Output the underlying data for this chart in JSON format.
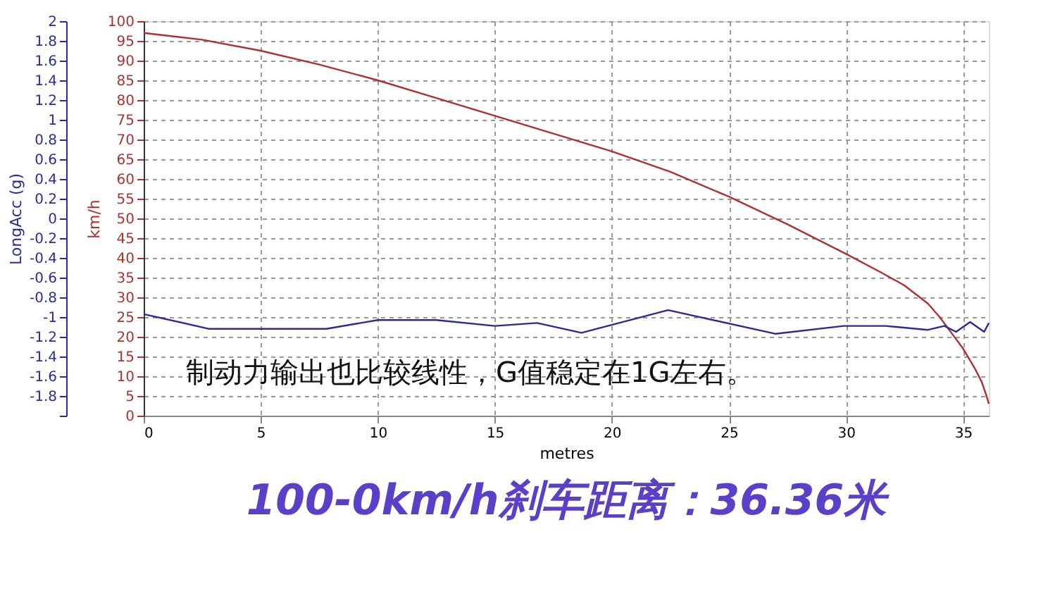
{
  "chart_data": {
    "type": "line",
    "title": "100-0km/h刹车距离：36.36米",
    "xlabel": "metres",
    "ylabel": "km/h",
    "y2label": "LongAcc (g)",
    "annotations": [
      "制动力输出也比较线性，G值稳定在1G左右。"
    ],
    "xlim": [
      0,
      36.1
    ],
    "xticks": [
      0,
      5,
      10,
      15,
      20,
      25,
      30,
      35
    ],
    "ylim": [
      0,
      100
    ],
    "yticks": [
      0,
      5,
      10,
      15,
      20,
      25,
      30,
      35,
      40,
      45,
      50,
      55,
      60,
      65,
      70,
      75,
      80,
      85,
      90,
      95,
      100
    ],
    "y2lim": [
      -2,
      2
    ],
    "y2ticks": [
      {
        "value": -2,
        "label": null
      },
      -1.8,
      -1.6,
      -1.4,
      -1.2,
      -1,
      -0.8,
      -0.6,
      -0.4,
      -0.2,
      0,
      0.2,
      0.4,
      0.6,
      0.8,
      1,
      1.2,
      1.4,
      1.6,
      1.8,
      2
    ],
    "grid": true,
    "line_style": "solid",
    "marker": "none",
    "series": [
      {
        "color": "#b03030",
        "x": [
          0,
          2.5,
          5,
          7.5,
          10,
          12.5,
          15,
          17.5,
          20,
          22.5,
          25,
          27.5,
          30,
          31.5,
          32.5,
          33.5,
          34,
          34.5,
          35,
          35.5,
          35.8,
          36,
          36.1
        ],
        "values": [
          97,
          95.3,
          92.5,
          89,
          85,
          80.5,
          76,
          71.5,
          67,
          61.8,
          55.5,
          48.5,
          41,
          36.3,
          33,
          28.4,
          25,
          21,
          17,
          12,
          8.5,
          5,
          3
        ]
      },
      {
        "color": "#2a2a9a",
        "axis": "y2",
        "x": [
          0,
          2.8,
          7.8,
          10,
          12.5,
          15,
          16.8,
          18.7,
          22.4,
          27,
          29.9,
          31.7,
          33.5,
          34.2,
          34.7,
          35.3,
          35.9,
          36.1
        ],
        "values": [
          -0.97,
          -1.12,
          -1.12,
          -1.03,
          -1.03,
          -1.09,
          -1.06,
          -1.16,
          -0.93,
          -1.17,
          -1.09,
          -1.09,
          -1.13,
          -1.09,
          -1.15,
          -1.05,
          -1.15,
          -1.06
        ]
      }
    ]
  }
}
